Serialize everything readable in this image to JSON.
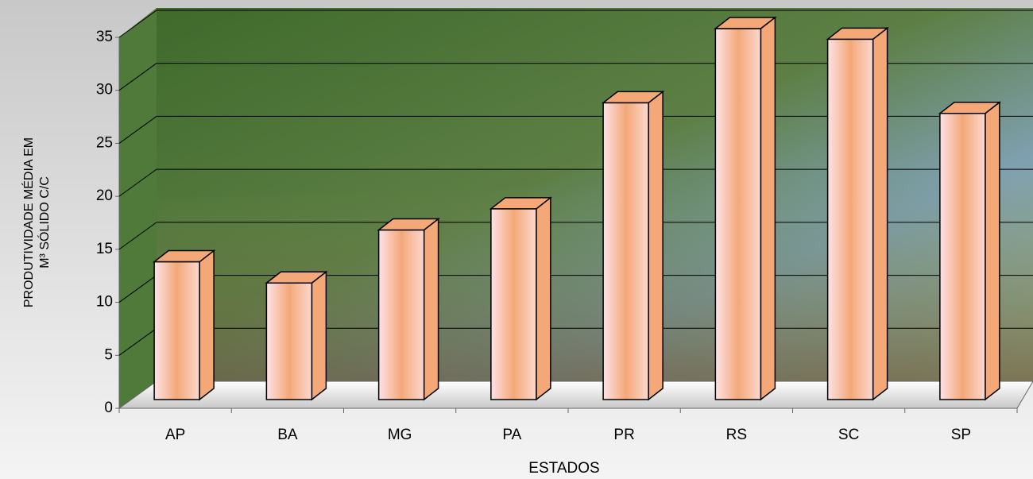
{
  "chart_data": {
    "type": "bar3d",
    "xlabel": "ESTADOS",
    "ylabel": [
      "PRODUTIVIDADE MÉDIA EM",
      "M³ SÓLIDO C/C"
    ],
    "categories": [
      "AP",
      "BA",
      "MG",
      "PA",
      "PR",
      "RS",
      "SC",
      "SP"
    ],
    "values": [
      13,
      11,
      16,
      18,
      28,
      35,
      34,
      27
    ],
    "color": "#f4a878",
    "ylim": [
      0,
      35
    ],
    "yticks": [
      0,
      5,
      10,
      15,
      20,
      25,
      30,
      35
    ],
    "grid": true
  }
}
